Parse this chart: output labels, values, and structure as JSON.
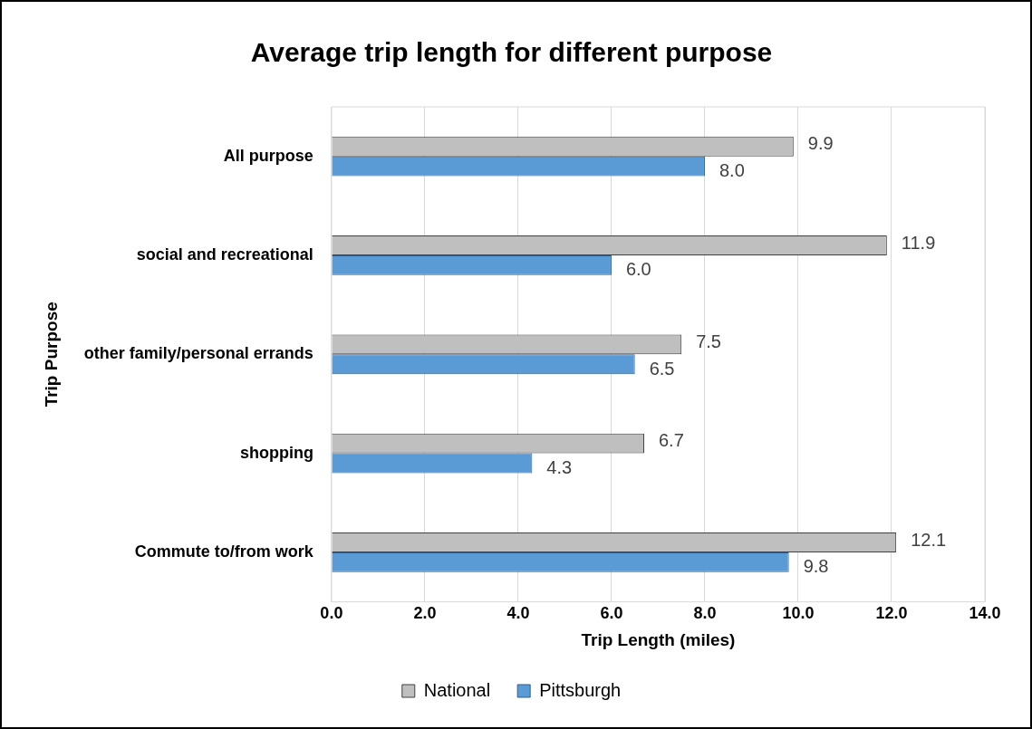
{
  "chart_data": {
    "type": "bar",
    "orientation": "horizontal",
    "title": "Average trip length for different purpose",
    "xlabel": "Trip Length (miles)",
    "ylabel": "Trip Purpose",
    "categories": [
      "All purpose",
      "social and recreational",
      "other family/personal errands",
      "shopping",
      "Commute to/from work"
    ],
    "series": [
      {
        "name": "National",
        "color": "#bfbfbf",
        "values": [
          9.9,
          11.9,
          7.5,
          6.7,
          12.1
        ],
        "value_labels": [
          "9.9",
          "11.9",
          "7.5",
          "6.7",
          "12.1"
        ]
      },
      {
        "name": "Pittsburgh",
        "color": "#5b9bd5",
        "values": [
          8.0,
          6.0,
          6.5,
          4.3,
          9.8
        ],
        "value_labels": [
          "8.0",
          "6.0",
          "6.5",
          "4.3",
          "9.8"
        ]
      }
    ],
    "xlim": [
      0,
      14
    ],
    "xticks": [
      {
        "value": 0,
        "label": "0.0"
      },
      {
        "value": 2,
        "label": "2.0"
      },
      {
        "value": 4,
        "label": "4.0"
      },
      {
        "value": 6,
        "label": "6.0"
      },
      {
        "value": 8,
        "label": "8.0"
      },
      {
        "value": 10,
        "label": "10.0"
      },
      {
        "value": 12,
        "label": "12.0"
      },
      {
        "value": 14,
        "label": "14.0"
      }
    ],
    "grid": "x",
    "legend": "bottom"
  }
}
